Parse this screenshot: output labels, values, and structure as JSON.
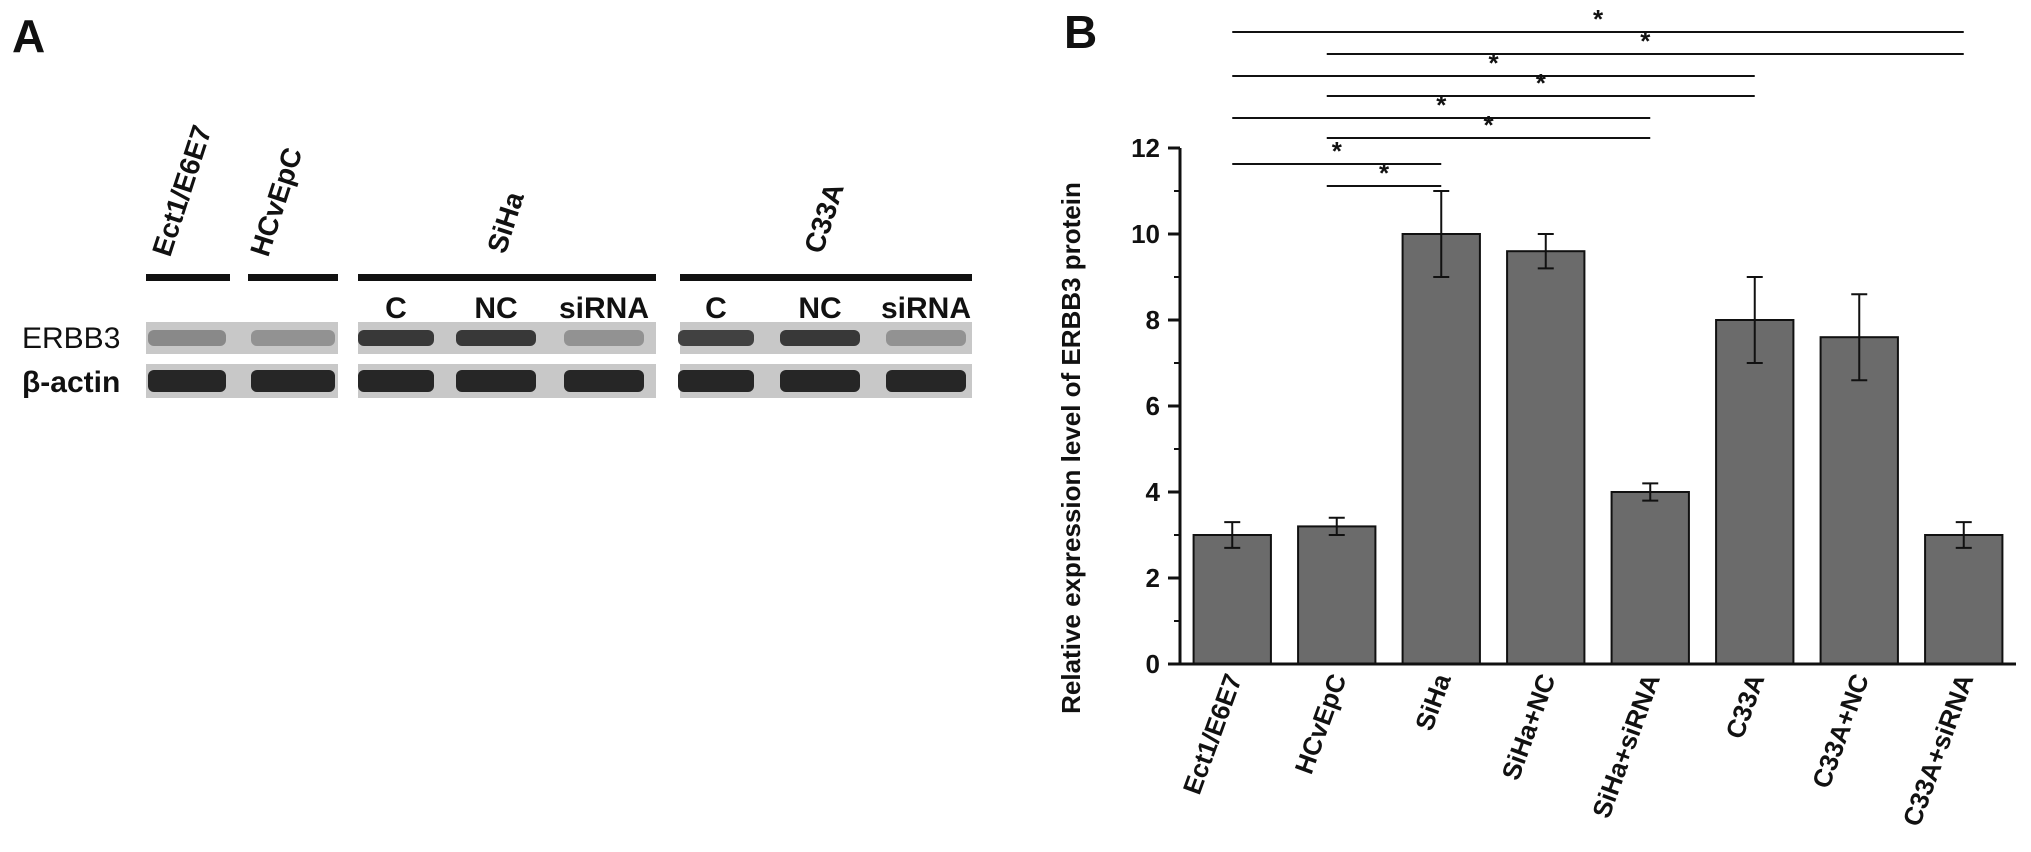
{
  "panel_a": {
    "letter": "A",
    "header_labels": [
      "Ect1/E6E7",
      "HCvEpC",
      "SiHa",
      "C33A"
    ],
    "sub_labels": [
      "C",
      "NC",
      "siRNA",
      "C",
      "NC",
      "siRNA"
    ],
    "row_labels": [
      "ERBB3",
      "β-actin"
    ],
    "band_intensity": {
      "ERBB3": [
        0.35,
        0.3,
        0.8,
        0.8,
        0.3,
        0.75,
        0.8,
        0.3
      ],
      "beta_actin": [
        0.9,
        0.9,
        0.9,
        0.9,
        0.9,
        0.9,
        0.9,
        0.9
      ]
    }
  },
  "panel_b": {
    "letter": "B",
    "significance_marker": "*"
  },
  "chart_data": {
    "type": "bar",
    "categories": [
      "Ect1/E6E7",
      "HCvEpC",
      "SiHa",
      "SiHa+NC",
      "SiHa+siRNA",
      "C33A",
      "C33A+NC",
      "C33A+siRNA"
    ],
    "values": [
      3.0,
      3.2,
      10.0,
      9.6,
      4.0,
      8.0,
      7.6,
      3.0
    ],
    "errors": [
      0.3,
      0.2,
      1.0,
      0.4,
      0.2,
      1.0,
      1.0,
      0.3
    ],
    "title": "",
    "xlabel": "",
    "ylabel": "Relative expression level of ERBB3 protein",
    "ylim": [
      0,
      12
    ],
    "yticks": [
      0,
      2,
      4,
      6,
      8,
      10,
      12
    ],
    "bar_color": "#6b6b6b",
    "comparisons": [
      {
        "from": 0,
        "to": 7,
        "label": "*"
      },
      {
        "from": 1,
        "to": 7,
        "label": "*"
      },
      {
        "from": 0,
        "to": 5,
        "label": "*"
      },
      {
        "from": 1,
        "to": 5,
        "label": "*"
      },
      {
        "from": 0,
        "to": 4,
        "label": "*"
      },
      {
        "from": 1,
        "to": 4,
        "label": "*"
      },
      {
        "from": 0,
        "to": 2,
        "label": "*"
      },
      {
        "from": 1,
        "to": 2,
        "label": "*"
      }
    ]
  }
}
